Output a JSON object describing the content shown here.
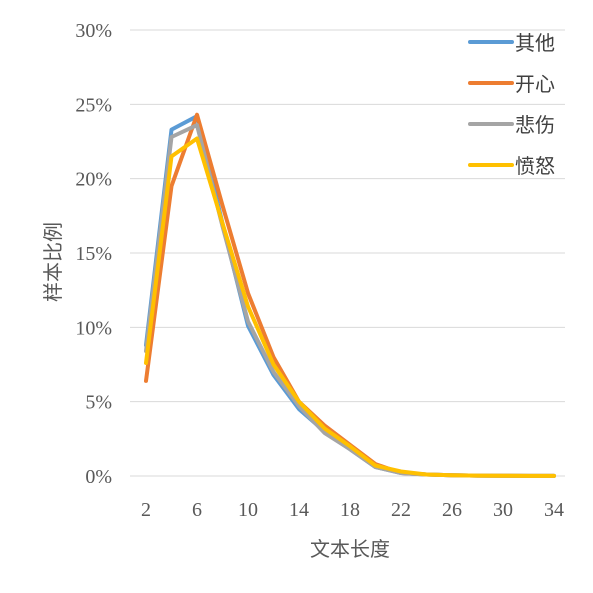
{
  "chart_data": {
    "type": "line",
    "xlabel": "文本长度",
    "ylabel": "样本比例",
    "x": [
      2,
      4,
      6,
      8,
      10,
      12,
      14,
      16,
      18,
      20,
      22,
      24,
      26,
      28,
      30,
      32,
      34
    ],
    "x_tick_labels": [
      "2",
      "6",
      "10",
      "14",
      "18",
      "22",
      "26",
      "30",
      "34"
    ],
    "y_tick_labels": [
      "0%",
      "5%",
      "10%",
      "15%",
      "20%",
      "25%",
      "30%"
    ],
    "ylim": [
      0,
      0.3
    ],
    "grid": "horizontal",
    "legend_position": "top-right",
    "series": [
      {
        "name": "其他",
        "color": "#5B9BD5",
        "values": [
          0.088,
          0.233,
          0.242,
          0.17,
          0.101,
          0.068,
          0.045,
          0.03,
          0.018,
          0.006,
          0.002,
          0.001,
          0.0005,
          0.0003,
          0.0002,
          0.0001,
          0.0001
        ]
      },
      {
        "name": "开心",
        "color": "#ED7D31",
        "values": [
          0.064,
          0.195,
          0.243,
          0.182,
          0.123,
          0.08,
          0.05,
          0.034,
          0.021,
          0.008,
          0.002,
          0.001,
          0.0005,
          0.0003,
          0.0002,
          0.0001,
          0.0001
        ]
      },
      {
        "name": "悲伤",
        "color": "#A5A5A5",
        "values": [
          0.084,
          0.228,
          0.236,
          0.168,
          0.104,
          0.07,
          0.047,
          0.029,
          0.018,
          0.006,
          0.002,
          0.001,
          0.0005,
          0.0003,
          0.0002,
          0.0001,
          0.0001
        ]
      },
      {
        "name": "愤怒",
        "color": "#FFC000",
        "values": [
          0.076,
          0.215,
          0.227,
          0.17,
          0.114,
          0.075,
          0.05,
          0.032,
          0.02,
          0.007,
          0.003,
          0.001,
          0.0005,
          0.0003,
          0.0002,
          0.0001,
          0.0001
        ]
      }
    ]
  }
}
